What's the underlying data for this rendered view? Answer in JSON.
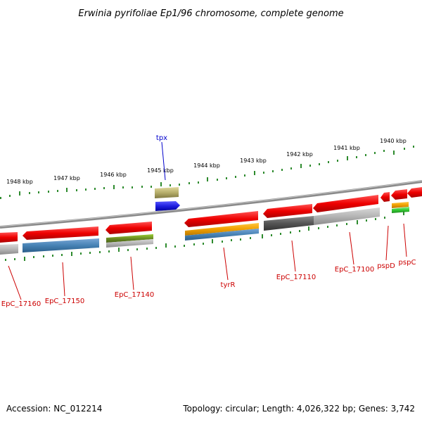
{
  "title": "Erwinia pyrifoliae Ep1/96 chromosome, complete genome",
  "footer": {
    "accession": "Accession: NC_012214",
    "summary": "Topology: circular; Length: 4,026,322 bp; Genes: 3,742"
  },
  "scale_labels": [
    "1948 kbp",
    "1947 kbp",
    "1946 kbp",
    "1945 kbp",
    "1944 kbp",
    "1943 kbp",
    "1942 kbp",
    "1941 kbp",
    "1940 kbp"
  ],
  "genes": [
    {
      "name": "EpC_17160",
      "color": "#cc0000"
    },
    {
      "name": "EpC_17150",
      "color": "#cc0000"
    },
    {
      "name": "EpC_17140",
      "color": "#cc0000"
    },
    {
      "name": "tpx",
      "color": "#0000cc"
    },
    {
      "name": "tyrR",
      "color": "#cc0000"
    },
    {
      "name": "EpC_17110",
      "color": "#cc0000"
    },
    {
      "name": "EpC_17100",
      "color": "#cc0000"
    },
    {
      "name": "pspD",
      "color": "#cc0000"
    },
    {
      "name": "pspC",
      "color": "#cc0000"
    }
  ],
  "colors": {
    "forward_cds": "#ee1111",
    "tick": "#2e8b2e",
    "backbone": "#8a8a8a",
    "blue_feature": "#1f1fe0",
    "gray_feature": "#9a9a9a",
    "olive_feature": "#b5ad6a",
    "orange_feature": "#f0a000",
    "steelblue_feature": "#4682b4",
    "green_feature": "#6b8e23"
  }
}
